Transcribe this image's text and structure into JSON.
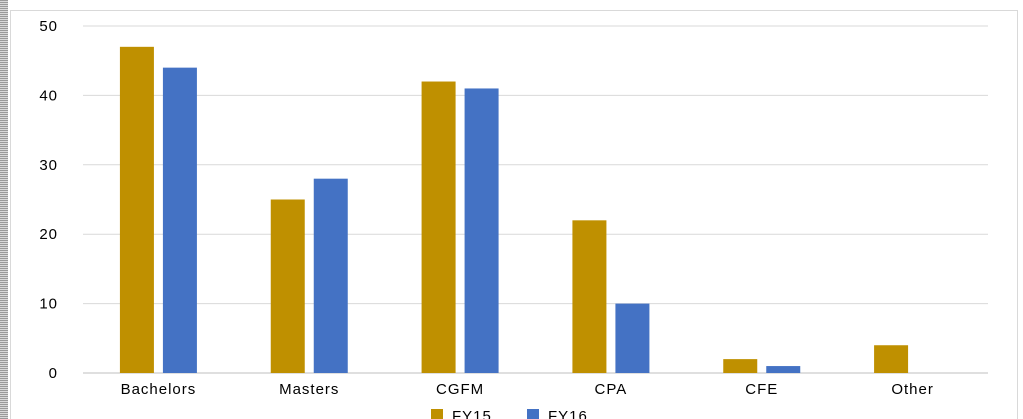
{
  "chart_data": {
    "type": "bar",
    "categories": [
      "Bachelors",
      "Masters",
      "CGFM",
      "CPA",
      "CFE",
      "Other"
    ],
    "series": [
      {
        "name": "FY15",
        "values": [
          47,
          25,
          42,
          22,
          2,
          4
        ],
        "color": "#bf9000"
      },
      {
        "name": "FY16",
        "values": [
          44,
          28,
          41,
          10,
          1,
          0
        ],
        "color": "#4472c4"
      }
    ],
    "ylim": [
      0,
      50
    ],
    "yticks": [
      0,
      10,
      20,
      30,
      40,
      50
    ],
    "grid": true,
    "legend": "bottom-center",
    "title": "",
    "xlabel": "",
    "ylabel": ""
  }
}
